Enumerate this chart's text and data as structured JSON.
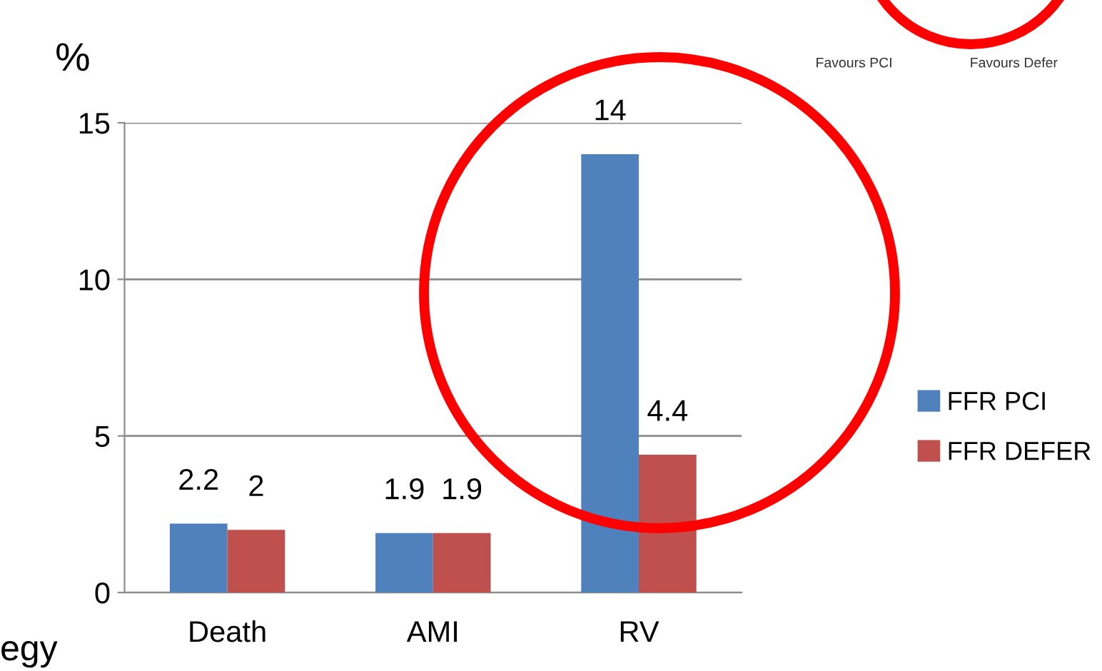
{
  "chart_data": {
    "type": "bar",
    "ylabel": "%",
    "categories": [
      "Death",
      "AMI",
      "RV"
    ],
    "series": [
      {
        "name": "FFR PCI",
        "color": "#4f81bd",
        "values": [
          2.2,
          1.9,
          14
        ]
      },
      {
        "name": "FFR DEFER",
        "color": "#c0504d",
        "values": [
          2,
          1.9,
          4.4
        ]
      }
    ],
    "ylim": [
      0,
      15
    ],
    "yticks": [
      0,
      5,
      10,
      15
    ],
    "grid": "y",
    "legend": "right",
    "data_labels": true,
    "annotations": [
      "Favours PCI",
      "Favours Defer",
      "egy"
    ]
  }
}
